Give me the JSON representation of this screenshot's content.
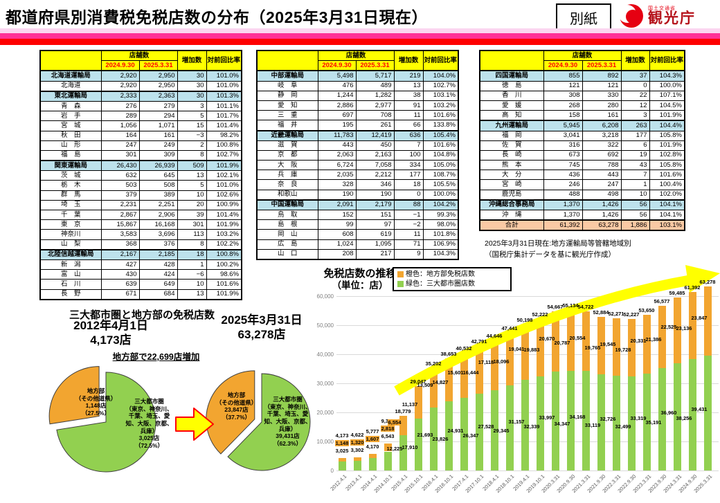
{
  "page": {
    "title": "都道府県別消費税免税店数の分布（2025年3月31日現在）",
    "attachment_label": "別紙",
    "logo": {
      "ministry": "国土交通省",
      "agency": "観光庁"
    },
    "stripe_colors": [
      "#FBD5F0",
      "#FF3097",
      "#FE0000"
    ],
    "accent": {
      "header_yellow": "#FFFF00",
      "bureau_blue": "#BDE2EC",
      "total_peach": "#FAC9A4",
      "date_red": "#FF0000"
    }
  },
  "table_common": {
    "col_group_header": "店舗数",
    "date_cols": [
      "2024.9.30",
      "2025.3.31"
    ],
    "increase_col": "増加数",
    "ratio_col": "対前回比率"
  },
  "tables": [
    {
      "rows": [
        {
          "name": "北海道運輸局",
          "type": "bureau",
          "v1": "2,920",
          "v2": "2,950",
          "inc": "30",
          "ratio": "101.0%"
        },
        {
          "name": "北海道",
          "type": "pref",
          "v1": "2,920",
          "v2": "2,950",
          "inc": "30",
          "ratio": "101.0%"
        },
        {
          "name": "東北運輸局",
          "type": "bureau",
          "v1": "2,333",
          "v2": "2,363",
          "inc": "30",
          "ratio": "101.3%"
        },
        {
          "name": "青　森",
          "type": "pref",
          "v1": "276",
          "v2": "279",
          "inc": "3",
          "ratio": "101.1%"
        },
        {
          "name": "岩　手",
          "type": "pref",
          "v1": "289",
          "v2": "294",
          "inc": "5",
          "ratio": "101.7%"
        },
        {
          "name": "宮　城",
          "type": "pref",
          "v1": "1,056",
          "v2": "1,071",
          "inc": "15",
          "ratio": "101.4%"
        },
        {
          "name": "秋　田",
          "type": "pref",
          "v1": "164",
          "v2": "161",
          "inc": "−3",
          "ratio": "98.2%"
        },
        {
          "name": "山　形",
          "type": "pref",
          "v1": "247",
          "v2": "249",
          "inc": "2",
          "ratio": "100.8%"
        },
        {
          "name": "福　島",
          "type": "pref",
          "v1": "301",
          "v2": "309",
          "inc": "8",
          "ratio": "102.7%"
        },
        {
          "name": "関東運輸局",
          "type": "bureau",
          "v1": "26,430",
          "v2": "26,939",
          "inc": "509",
          "ratio": "101.9%"
        },
        {
          "name": "茨　城",
          "type": "pref",
          "v1": "632",
          "v2": "645",
          "inc": "13",
          "ratio": "102.1%"
        },
        {
          "name": "栃　木",
          "type": "pref",
          "v1": "503",
          "v2": "508",
          "inc": "5",
          "ratio": "101.0%"
        },
        {
          "name": "群　馬",
          "type": "pref",
          "v1": "379",
          "v2": "389",
          "inc": "10",
          "ratio": "102.6%"
        },
        {
          "name": "埼　玉",
          "type": "pref",
          "v1": "2,231",
          "v2": "2,251",
          "inc": "20",
          "ratio": "100.9%"
        },
        {
          "name": "千　葉",
          "type": "pref",
          "v1": "2,867",
          "v2": "2,906",
          "inc": "39",
          "ratio": "101.4%"
        },
        {
          "name": "東　京",
          "type": "pref",
          "v1": "15,867",
          "v2": "16,168",
          "inc": "301",
          "ratio": "101.9%"
        },
        {
          "name": "神奈川",
          "type": "pref",
          "v1": "3,583",
          "v2": "3,696",
          "inc": "113",
          "ratio": "103.2%"
        },
        {
          "name": "山　梨",
          "type": "pref",
          "v1": "368",
          "v2": "376",
          "inc": "8",
          "ratio": "102.2%"
        },
        {
          "name": "北陸信越運輸局",
          "type": "bureau",
          "v1": "2,167",
          "v2": "2,185",
          "inc": "18",
          "ratio": "100.8%"
        },
        {
          "name": "新　潟",
          "type": "pref",
          "v1": "427",
          "v2": "428",
          "inc": "1",
          "ratio": "100.2%"
        },
        {
          "name": "富　山",
          "type": "pref",
          "v1": "430",
          "v2": "424",
          "inc": "−6",
          "ratio": "98.6%"
        },
        {
          "name": "石　川",
          "type": "pref",
          "v1": "639",
          "v2": "649",
          "inc": "10",
          "ratio": "101.6%"
        },
        {
          "name": "長　野",
          "type": "pref",
          "v1": "671",
          "v2": "684",
          "inc": "13",
          "ratio": "101.9%"
        }
      ]
    },
    {
      "rows": [
        {
          "name": "中部運輸局",
          "type": "bureau",
          "v1": "5,498",
          "v2": "5,717",
          "inc": "219",
          "ratio": "104.0%"
        },
        {
          "name": "岐　阜",
          "type": "pref",
          "v1": "476",
          "v2": "489",
          "inc": "13",
          "ratio": "102.7%"
        },
        {
          "name": "静　岡",
          "type": "pref",
          "v1": "1,244",
          "v2": "1,282",
          "inc": "38",
          "ratio": "103.1%"
        },
        {
          "name": "愛　知",
          "type": "pref",
          "v1": "2,886",
          "v2": "2,977",
          "inc": "91",
          "ratio": "103.2%"
        },
        {
          "name": "三　重",
          "type": "pref",
          "v1": "697",
          "v2": "708",
          "inc": "11",
          "ratio": "101.6%"
        },
        {
          "name": "福　井",
          "type": "pref",
          "v1": "195",
          "v2": "261",
          "inc": "66",
          "ratio": "133.8%"
        },
        {
          "name": "近畿運輸局",
          "type": "bureau",
          "v1": "11,783",
          "v2": "12,419",
          "inc": "636",
          "ratio": "105.4%"
        },
        {
          "name": "滋　賀",
          "type": "pref",
          "v1": "443",
          "v2": "450",
          "inc": "7",
          "ratio": "101.6%"
        },
        {
          "name": "京　都",
          "type": "pref",
          "v1": "2,063",
          "v2": "2,163",
          "inc": "100",
          "ratio": "104.8%"
        },
        {
          "name": "大　阪",
          "type": "pref",
          "v1": "6,724",
          "v2": "7,058",
          "inc": "334",
          "ratio": "105.0%"
        },
        {
          "name": "兵　庫",
          "type": "pref",
          "v1": "2,035",
          "v2": "2,212",
          "inc": "177",
          "ratio": "108.7%"
        },
        {
          "name": "奈　良",
          "type": "pref",
          "v1": "328",
          "v2": "346",
          "inc": "18",
          "ratio": "105.5%"
        },
        {
          "name": "和歌山",
          "type": "pref",
          "v1": "190",
          "v2": "190",
          "inc": "0",
          "ratio": "100.0%"
        },
        {
          "name": "中国運輸局",
          "type": "bureau",
          "v1": "2,091",
          "v2": "2,179",
          "inc": "88",
          "ratio": "104.2%"
        },
        {
          "name": "鳥　取",
          "type": "pref",
          "v1": "152",
          "v2": "151",
          "inc": "−1",
          "ratio": "99.3%"
        },
        {
          "name": "島　根",
          "type": "pref",
          "v1": "99",
          "v2": "97",
          "inc": "−2",
          "ratio": "98.0%"
        },
        {
          "name": "岡　山",
          "type": "pref",
          "v1": "608",
          "v2": "619",
          "inc": "11",
          "ratio": "101.8%"
        },
        {
          "name": "広　島",
          "type": "pref",
          "v1": "1,024",
          "v2": "1,095",
          "inc": "71",
          "ratio": "106.9%"
        },
        {
          "name": "山　口",
          "type": "pref",
          "v1": "208",
          "v2": "217",
          "inc": "9",
          "ratio": "104.3%"
        }
      ]
    },
    {
      "rows": [
        {
          "name": "四国運輸局",
          "type": "bureau",
          "v1": "855",
          "v2": "892",
          "inc": "37",
          "ratio": "104.3%"
        },
        {
          "name": "徳　島",
          "type": "pref",
          "v1": "121",
          "v2": "121",
          "inc": "0",
          "ratio": "100.0%"
        },
        {
          "name": "香　川",
          "type": "pref",
          "v1": "308",
          "v2": "330",
          "inc": "22",
          "ratio": "107.1%"
        },
        {
          "name": "愛　媛",
          "type": "pref",
          "v1": "268",
          "v2": "280",
          "inc": "12",
          "ratio": "104.5%"
        },
        {
          "name": "高　知",
          "type": "pref",
          "v1": "158",
          "v2": "161",
          "inc": "3",
          "ratio": "101.9%"
        },
        {
          "name": "九州運輸局",
          "type": "bureau",
          "v1": "5,945",
          "v2": "6,208",
          "inc": "263",
          "ratio": "104.4%"
        },
        {
          "name": "福　岡",
          "type": "pref",
          "v1": "3,041",
          "v2": "3,218",
          "inc": "177",
          "ratio": "105.8%"
        },
        {
          "name": "佐　賀",
          "type": "pref",
          "v1": "316",
          "v2": "322",
          "inc": "6",
          "ratio": "101.9%"
        },
        {
          "name": "長　崎",
          "type": "pref",
          "v1": "673",
          "v2": "692",
          "inc": "19",
          "ratio": "102.8%"
        },
        {
          "name": "熊　本",
          "type": "pref",
          "v1": "745",
          "v2": "788",
          "inc": "43",
          "ratio": "105.8%"
        },
        {
          "name": "大　分",
          "type": "pref",
          "v1": "436",
          "v2": "443",
          "inc": "7",
          "ratio": "101.6%"
        },
        {
          "name": "宮　崎",
          "type": "pref",
          "v1": "246",
          "v2": "247",
          "inc": "1",
          "ratio": "100.4%"
        },
        {
          "name": "鹿児島",
          "type": "pref",
          "v1": "488",
          "v2": "498",
          "inc": "10",
          "ratio": "102.0%"
        },
        {
          "name": "沖縄総合事務局",
          "type": "bureau",
          "v1": "1,370",
          "v2": "1,426",
          "inc": "56",
          "ratio": "104.1%"
        },
        {
          "name": "沖　縄",
          "type": "pref",
          "v1": "1,370",
          "v2": "1,426",
          "inc": "56",
          "ratio": "104.1%"
        },
        {
          "name": "合計",
          "type": "total",
          "v1": "61,392",
          "v2": "63,278",
          "inc": "1,886",
          "ratio": "103.1%"
        }
      ]
    }
  ],
  "source_note": [
    "2025年3月31日現在:地方運輸局等管轄地域別",
    "（国税庁集計データを基に観光庁作成）"
  ],
  "pie_section": {
    "caption": "三大都市圏と地方部の免税店数",
    "arrow_note": "地方部で22,699店増加",
    "pies": [
      {
        "title": [
          "2012年4月1日",
          "4,173店"
        ],
        "slices": [
          {
            "name": "三大都市圏",
            "pct": 72.5,
            "color": "#92D050",
            "label_lines": [
              "三大都市圏",
              "（東京、神奈川、",
              "千葉、埼玉、愛",
              "知、大阪、京都、",
              "兵庫）",
              "3,025店",
              "（72.5%）"
            ]
          },
          {
            "name": "地方部",
            "pct": 27.5,
            "color": "#F2A530",
            "explode": true,
            "label_lines": [
              "地方部",
              "（その他道県）",
              "1,148店",
              "（27.5%）"
            ]
          }
        ]
      },
      {
        "title": [
          "2025年3月31日",
          "63,278店"
        ],
        "slices": [
          {
            "name": "三大都市圏",
            "pct": 62.3,
            "color": "#92D050",
            "label_lines": [
              "三大都市圏",
              "（東京、神奈川、",
              "千葉、埼玉、愛",
              "知、大阪、京都、",
              "兵庫）",
              "39,431店",
              "（62.3%）"
            ]
          },
          {
            "name": "地方部",
            "pct": 37.7,
            "color": "#F2A530",
            "explode": true,
            "label_lines": [
              "地方部",
              "（その他道県）",
              "23,847店",
              "（37.7%）"
            ]
          }
        ]
      }
    ]
  },
  "chart_data": {
    "type": "bar",
    "stacked": true,
    "title": "免税店数の推移（単位：店）",
    "title_line1": "免税店数の推移",
    "title_line2": "（単位：店）",
    "legend": [
      {
        "color": "#F2A530",
        "label": "橙色：地方部免税店数"
      },
      {
        "color": "#92D050",
        "label": "緑色：三大都市圏店数"
      }
    ],
    "categories": [
      "2012.4.1",
      "2013.4.1",
      "2014.4.1",
      "2014.10.1",
      "2015.4.1",
      "2015.10.1",
      "2016.4.1",
      "2016.10.1",
      "2017.4.1",
      "2017.10.1",
      "2018.4.1",
      "2018.10.1",
      "2019.4.1",
      "2019.10.1",
      "2020.3.31",
      "2020.9.30",
      "2021.3.31",
      "2021.9.30",
      "2022.3.31",
      "2022.9.30",
      "2023.3.31",
      "2023.9.30",
      "2024.3.31",
      "2024.9.30",
      "2025.3.31"
    ],
    "series": [
      {
        "name": "三大都市圏店数",
        "color": "#92D050",
        "values": [
          3025,
          3302,
          4170,
          6543,
          12225,
          17910,
          21693,
          23826,
          24931,
          26347,
          27528,
          29345,
          31157,
          32339,
          33997,
          34347,
          34168,
          33119,
          32726,
          32499,
          33319,
          35191,
          36960,
          38256,
          39431
        ]
      },
      {
        "name": "地方部免税店数",
        "color": "#F2A530",
        "values": [
          1148,
          1320,
          1607,
          2818,
          6554,
          11137,
          13509,
          14827,
          15601,
          16444,
          17118,
          18096,
          19041,
          19883,
          20670,
          20787,
          20554,
          19765,
          19545,
          19728,
          20331,
          21386,
          22525,
          23136,
          23847
        ]
      }
    ],
    "totals": [
      4173,
      4622,
      5777,
      9361,
      18779,
      29047,
      35202,
      38653,
      40532,
      42791,
      44646,
      47441,
      50198,
      52222,
      54667,
      55134,
      54722,
      52884,
      52271,
      52227,
      53650,
      56577,
      59485,
      61392,
      63278
    ],
    "ylim": [
      0,
      60000
    ],
    "ytick_step": 10000,
    "grid": true,
    "legend_position": "top"
  }
}
